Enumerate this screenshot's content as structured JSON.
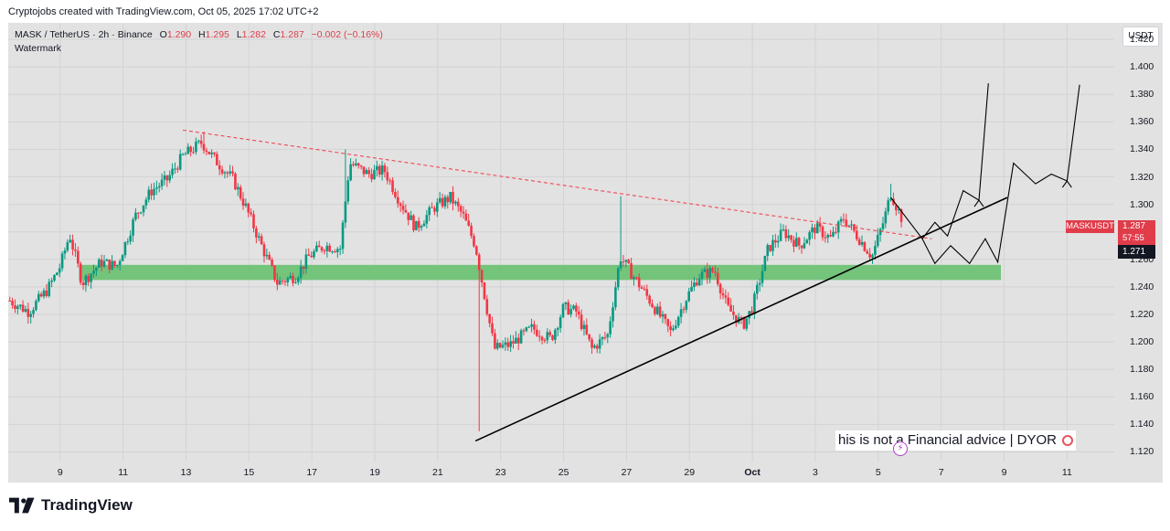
{
  "credit": "Cryptojobs created with TradingView.com, Oct 05, 2025 17:02 UTC+2",
  "legend": {
    "symbol": "MASK / TetherUS",
    "interval": "2h",
    "exchange": "Binance",
    "open_label": "O",
    "open": "1.290",
    "high_label": "H",
    "high": "1.295",
    "low_label": "L",
    "low": "1.282",
    "close_label": "C",
    "close": "1.287",
    "change": "−0.002 (−0.16%)",
    "line2": "Watermark"
  },
  "currency": "USDT",
  "price_tags": {
    "symbol": "MASKUSDT",
    "last": "1.287",
    "countdown": "57:55",
    "marker": "1.271"
  },
  "disclaimer": "his is not a Financial advice | DYOR",
  "logo_text": "TradingView",
  "colors": {
    "up": "#089981",
    "down": "#f23645",
    "support_zone": "#6fc275",
    "resistance_line": "#f23645",
    "trend_line": "#000000",
    "background": "#e2e2e2"
  },
  "chart_data": {
    "type": "candlestick",
    "symbol": "MASK / TetherUS",
    "interval": "2h",
    "y_axis_ticks": [
      "1.420",
      "1.400",
      "1.380",
      "1.360",
      "1.340",
      "1.320",
      "1.300",
      "1.280",
      "1.260",
      "1.240",
      "1.220",
      "1.200",
      "1.180",
      "1.160",
      "1.140",
      "1.120"
    ],
    "ylim": [
      1.113,
      1.432
    ],
    "x_axis_ticks": [
      {
        "label": "9",
        "day": 9
      },
      {
        "label": "11",
        "day": 11
      },
      {
        "label": "13",
        "day": 13
      },
      {
        "label": "15",
        "day": 15
      },
      {
        "label": "17",
        "day": 17
      },
      {
        "label": "19",
        "day": 19
      },
      {
        "label": "21",
        "day": 21
      },
      {
        "label": "23",
        "day": 23
      },
      {
        "label": "25",
        "day": 25
      },
      {
        "label": "27",
        "day": 27
      },
      {
        "label": "29",
        "day": 29
      },
      {
        "label": "Oct",
        "day": 31,
        "bold": true
      },
      {
        "label": "3",
        "day": 33
      },
      {
        "label": "5",
        "day": 35
      },
      {
        "label": "7",
        "day": 37
      },
      {
        "label": "9",
        "day": 39
      },
      {
        "label": "11",
        "day": 41
      }
    ],
    "xlim": [
      7.35,
      42.5
    ],
    "price_path": [
      [
        7.4,
        1.23
      ],
      [
        8.0,
        1.222
      ],
      [
        8.6,
        1.238
      ],
      [
        9.0,
        1.255
      ],
      [
        9.3,
        1.278
      ],
      [
        9.7,
        1.243
      ],
      [
        10.3,
        1.258
      ],
      [
        10.8,
        1.255
      ],
      [
        11.4,
        1.292
      ],
      [
        11.9,
        1.31
      ],
      [
        12.4,
        1.318
      ],
      [
        12.9,
        1.335
      ],
      [
        13.5,
        1.345
      ],
      [
        13.9,
        1.333
      ],
      [
        14.5,
        1.318
      ],
      [
        14.9,
        1.298
      ],
      [
        15.4,
        1.27
      ],
      [
        15.9,
        1.243
      ],
      [
        16.5,
        1.248
      ],
      [
        16.9,
        1.262
      ],
      [
        17.4,
        1.27
      ],
      [
        17.9,
        1.268
      ],
      [
        18.2,
        1.33
      ],
      [
        18.8,
        1.322
      ],
      [
        19.3,
        1.325
      ],
      [
        19.8,
        1.302
      ],
      [
        20.3,
        1.283
      ],
      [
        20.9,
        1.298
      ],
      [
        21.4,
        1.305
      ],
      [
        21.8,
        1.292
      ],
      [
        22.2,
        1.27
      ],
      [
        22.5,
        1.232
      ],
      [
        22.8,
        1.195
      ],
      [
        23.3,
        1.198
      ],
      [
        24.0,
        1.21
      ],
      [
        24.6,
        1.202
      ],
      [
        25.0,
        1.225
      ],
      [
        25.4,
        1.222
      ],
      [
        25.9,
        1.195
      ],
      [
        26.4,
        1.205
      ],
      [
        26.8,
        1.262
      ],
      [
        27.3,
        1.245
      ],
      [
        27.8,
        1.228
      ],
      [
        28.4,
        1.207
      ],
      [
        28.9,
        1.232
      ],
      [
        29.3,
        1.248
      ],
      [
        29.8,
        1.252
      ],
      [
        30.2,
        1.225
      ],
      [
        30.7,
        1.212
      ],
      [
        31.0,
        1.225
      ],
      [
        31.5,
        1.268
      ],
      [
        32.0,
        1.28
      ],
      [
        32.5,
        1.27
      ],
      [
        33.0,
        1.283
      ],
      [
        33.5,
        1.275
      ],
      [
        33.9,
        1.29
      ],
      [
        34.4,
        1.275
      ],
      [
        34.8,
        1.262
      ],
      [
        35.2,
        1.29
      ],
      [
        35.4,
        1.308
      ],
      [
        35.8,
        1.287
      ]
    ],
    "wick_extremes": [
      {
        "day": 22.3,
        "low": 1.135
      },
      {
        "day": 26.8,
        "high": 1.306
      },
      {
        "day": 13.6,
        "high": 1.353
      },
      {
        "day": 18.1,
        "high": 1.34
      },
      {
        "day": 35.4,
        "high": 1.315
      }
    ],
    "support_zone": {
      "day_start": 9.6,
      "day_end": 38.9,
      "low": 1.245,
      "high": 1.256
    },
    "resistance_line": {
      "start": {
        "day": 12.9,
        "price": 1.354
      },
      "end": {
        "day": 36.7,
        "price": 1.275
      }
    },
    "trend_line": {
      "start": {
        "day": 22.2,
        "price": 1.128
      },
      "end": {
        "day": 39.1,
        "price": 1.305
      }
    },
    "projection_upper": [
      [
        35.4,
        1.305
      ],
      [
        36.4,
        1.275
      ],
      [
        36.8,
        1.287
      ],
      [
        37.2,
        1.277
      ],
      [
        37.7,
        1.31
      ],
      [
        38.2,
        1.303
      ],
      [
        38.5,
        1.388
      ],
      [
        38.7,
        1.38
      ]
    ],
    "projection_lower": [
      [
        36.4,
        1.275
      ],
      [
        36.8,
        1.257
      ],
      [
        37.3,
        1.27
      ],
      [
        37.9,
        1.257
      ],
      [
        38.4,
        1.275
      ],
      [
        38.8,
        1.258
      ],
      [
        39.3,
        1.33
      ],
      [
        40.0,
        1.315
      ],
      [
        40.5,
        1.322
      ],
      [
        41.0,
        1.317
      ],
      [
        41.4,
        1.387
      ],
      [
        41.6,
        1.38
      ]
    ]
  }
}
